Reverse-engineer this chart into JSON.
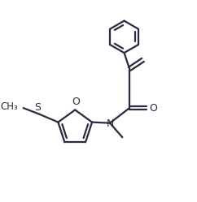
{
  "bg_color": "#ffffff",
  "line_color": "#2a2a3e",
  "line_width": 1.6,
  "figsize": [
    2.42,
    2.49
  ],
  "dpi": 100,
  "xlim": [
    0.0,
    10.0
  ],
  "ylim": [
    0.0,
    10.0
  ],
  "font_size": 9
}
